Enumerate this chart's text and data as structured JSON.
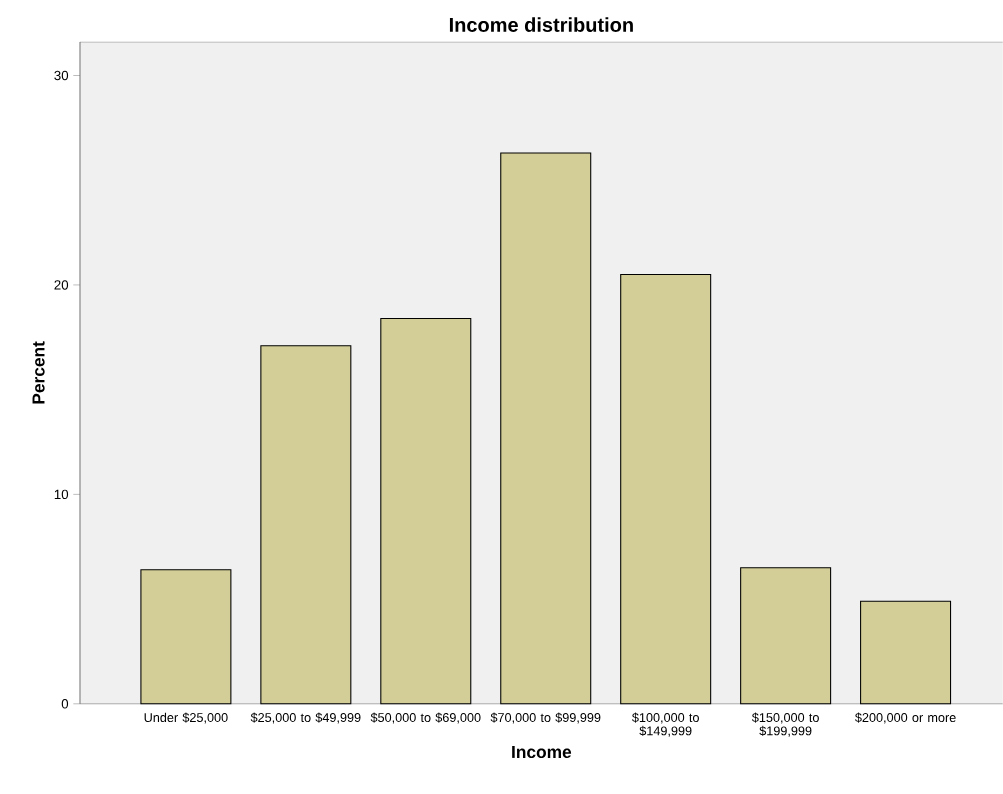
{
  "chart_data": {
    "type": "bar",
    "title": "Income distribution",
    "xlabel": "Income",
    "ylabel": "Percent",
    "categories": [
      "Under $25,000",
      "$25,000 to $49,999",
      "$50,000 to $69,000",
      "$70,000 to $99,999",
      "$100,000 to $149,999",
      "$150,000 to $199,999",
      "$200,000 or more"
    ],
    "values": [
      6.4,
      17.1,
      18.4,
      26.3,
      20.5,
      6.5,
      4.9
    ],
    "color": "#d3ce97",
    "ylim": [
      0,
      31.6
    ],
    "yticks": [
      0,
      10,
      20,
      30
    ],
    "grid": false
  }
}
